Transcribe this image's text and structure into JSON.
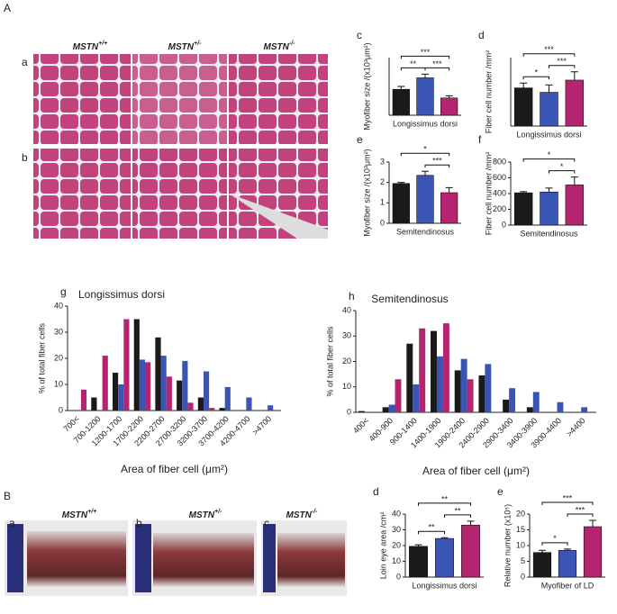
{
  "sections": [
    {
      "label": "A",
      "rows": [
        "a",
        "b"
      ],
      "genotypes": [
        {
          "gene": "MSTN",
          "sup": "+/+"
        },
        {
          "gene": "MSTN",
          "sup": "+/-"
        },
        {
          "gene": "MSTN",
          "sup": "-/-"
        }
      ]
    },
    {
      "label": "B",
      "images": [
        "a",
        "b",
        "c"
      ],
      "genotypes": [
        {
          "gene": "MSTN",
          "sup": "+/+"
        },
        {
          "gene": "MSTN",
          "sup": "+/-"
        },
        {
          "gene": "MSTN",
          "sup": "-/-"
        }
      ]
    }
  ],
  "chart_data": [
    {
      "type": "bar",
      "panel": "c",
      "ylabel": "Myofiber size /(x10³μm²)",
      "xlabel": "Longissimus dorsi",
      "colors": [
        "#1a1a1a",
        "#3a55b4",
        "#b5246e"
      ],
      "values": [
        1.8,
        2.6,
        1.2
      ],
      "errors": [
        0.2,
        0.25,
        0.15
      ],
      "ylim": [
        0,
        4
      ],
      "significance": [
        {
          "text": "***",
          "pair": [
            0,
            2
          ]
        },
        {
          "text": "**",
          "pair": [
            0,
            1
          ]
        },
        {
          "text": "***",
          "pair": [
            1,
            2
          ]
        }
      ]
    },
    {
      "type": "bar",
      "panel": "d",
      "ylabel": "Fiber cell number /mm²",
      "xlabel": "Longissimus dorsi",
      "colors": [
        "#1a1a1a",
        "#3a55b4",
        "#b5246e"
      ],
      "values": [
        390,
        345,
        470
      ],
      "errors": [
        50,
        75,
        85
      ],
      "ylim": [
        0,
        700
      ],
      "significance": [
        {
          "text": "***",
          "pair": [
            0,
            2
          ]
        },
        {
          "text": "*",
          "pair": [
            0,
            1
          ]
        },
        {
          "text": "***",
          "pair": [
            1,
            2
          ]
        }
      ]
    },
    {
      "type": "bar",
      "panel": "e",
      "ylabel": "Myofiber size /(x10³μm²)",
      "xlabel": "Semitendinosus",
      "colors": [
        "#1a1a1a",
        "#3a55b4",
        "#b5246e"
      ],
      "values": [
        1.95,
        2.35,
        1.5
      ],
      "errors": [
        0.05,
        0.2,
        0.25
      ],
      "ylim": [
        0,
        3
      ],
      "yticks": [
        0,
        1,
        2,
        3
      ],
      "significance": [
        {
          "text": "*",
          "pair": [
            0,
            2
          ]
        },
        {
          "text": "***",
          "pair": [
            1,
            2
          ]
        }
      ]
    },
    {
      "type": "bar",
      "panel": "f",
      "ylabel": "Fiber cell number /mm²",
      "xlabel": "Semitendinosus",
      "colors": [
        "#1a1a1a",
        "#3a55b4",
        "#b5246e"
      ],
      "values": [
        410,
        420,
        510
      ],
      "errors": [
        15,
        50,
        100
      ],
      "ylim": [
        0,
        800
      ],
      "yticks": [
        0,
        200,
        400,
        600,
        800
      ],
      "significance": [
        {
          "text": "*",
          "pair": [
            0,
            2
          ]
        },
        {
          "text": "*",
          "pair": [
            1,
            2
          ]
        }
      ]
    },
    {
      "type": "grouped_bar",
      "panel": "g",
      "title": "Longissimus dorsi",
      "ylabel": "% of total fiber cells",
      "xlabel": "Area of fiber cell (μm²)",
      "categories": [
        "700<",
        "700-1200",
        "1200-1700",
        "1700-2200",
        "2200-2700",
        "2700-3200",
        "3200-3700",
        "3700-4200",
        "4200-4700",
        ">4700"
      ],
      "series": [
        {
          "color": "#1a1a1a",
          "values": [
            0,
            5,
            14.5,
            35,
            28,
            11.5,
            5,
            1,
            0,
            0
          ]
        },
        {
          "color": "#3a55b4",
          "values": [
            0,
            0,
            10,
            19.5,
            21,
            19,
            15,
            9,
            5,
            2
          ]
        },
        {
          "color": "#b5246e",
          "values": [
            8,
            21,
            35,
            18.5,
            13,
            3,
            1,
            0,
            0,
            0
          ]
        }
      ],
      "ylim": [
        0,
        40
      ],
      "yticks": [
        0,
        10,
        20,
        30,
        40
      ]
    },
    {
      "type": "grouped_bar",
      "panel": "h",
      "title": "Semitendinosus",
      "ylabel": "% of total fiber cells",
      "xlabel": "Area of fiber cell (μm²)",
      "categories": [
        "400<",
        "400-900",
        "900-1400",
        "1400-1900",
        "1900-2400",
        "2400-2900",
        "2900-3400",
        "3400-3900",
        "3900-4400",
        ">4400"
      ],
      "series": [
        {
          "color": "#1a1a1a",
          "values": [
            0.5,
            2,
            27,
            32,
            16.5,
            14.5,
            5,
            2,
            0,
            0
          ]
        },
        {
          "color": "#3a55b4",
          "values": [
            0,
            3,
            11,
            22,
            21,
            19,
            9.5,
            8,
            4,
            2
          ]
        },
        {
          "color": "#b5246e",
          "values": [
            0,
            13,
            33,
            35,
            13,
            0,
            0,
            0,
            0,
            0
          ]
        }
      ],
      "ylim": [
        0,
        40
      ],
      "yticks": [
        0,
        10,
        20,
        30,
        40
      ]
    },
    {
      "type": "bar",
      "panel": "d",
      "ylabel": "Loin eye area /cm²",
      "xlabel": "Longissimus dorsi",
      "colors": [
        "#1a1a1a",
        "#3a55b4",
        "#b5246e"
      ],
      "values": [
        19.5,
        24.5,
        33
      ],
      "errors": [
        1,
        0.5,
        2.5
      ],
      "ylim": [
        0,
        40
      ],
      "yticks": [
        0,
        10,
        20,
        30,
        40
      ],
      "significance": [
        {
          "text": "**",
          "pair": [
            0,
            2
          ]
        },
        {
          "text": "**",
          "pair": [
            0,
            1
          ]
        },
        {
          "text": "**",
          "pair": [
            1,
            2
          ]
        }
      ]
    },
    {
      "type": "bar",
      "panel": "e",
      "ylabel": "Relative number (x10⁵)",
      "xlabel": "Myofiber of LD",
      "colors": [
        "#1a1a1a",
        "#3a55b4",
        "#b5246e"
      ],
      "values": [
        7.8,
        8.5,
        16
      ],
      "errors": [
        0.7,
        0.4,
        2
      ],
      "ylim": [
        0,
        20
      ],
      "yticks": [
        0,
        5,
        10,
        15,
        20
      ],
      "significance": [
        {
          "text": "***",
          "pair": [
            0,
            2
          ]
        },
        {
          "text": "*",
          "pair": [
            0,
            1
          ]
        },
        {
          "text": "***",
          "pair": [
            1,
            2
          ]
        }
      ]
    }
  ]
}
